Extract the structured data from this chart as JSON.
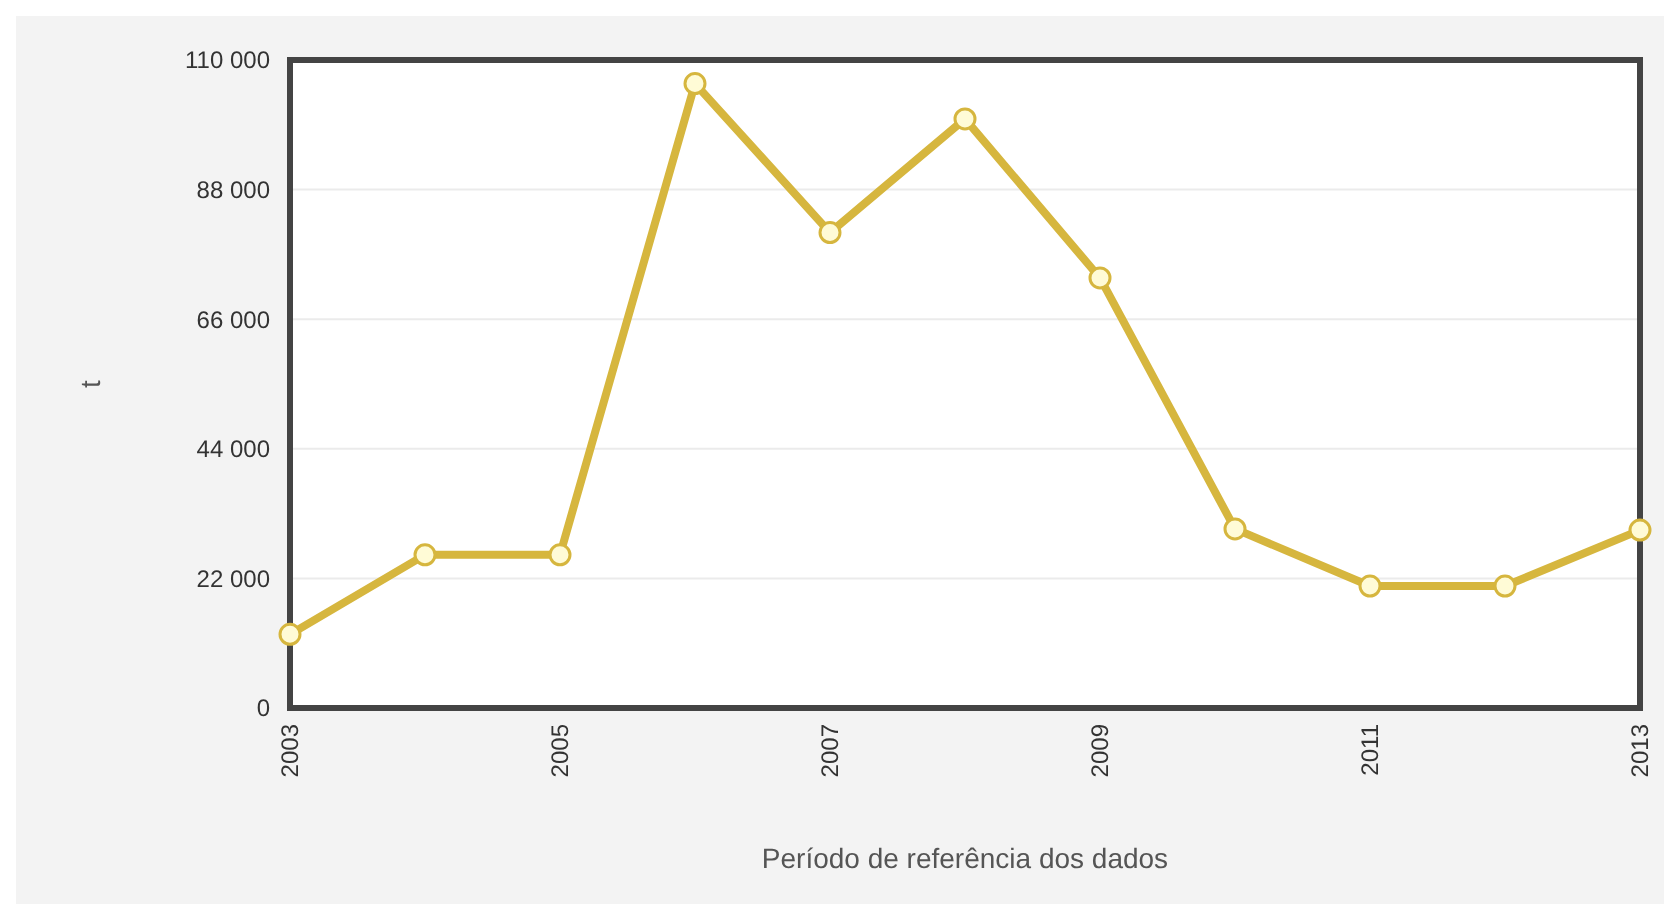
{
  "chart_data": {
    "type": "line",
    "xlabel": "Período de referência dos dados",
    "ylabel": "t",
    "x": [
      2003,
      2004,
      2005,
      2006,
      2007,
      2008,
      2009,
      2010,
      2011,
      2012,
      2013
    ],
    "series": [
      {
        "color": "#d6b63e",
        "values": [
          12500,
          26000,
          26000,
          106000,
          80700,
          100000,
          73000,
          30400,
          20700,
          20700,
          30200
        ]
      }
    ],
    "xlim": [
      2003,
      2013
    ],
    "xticks": [
      {
        "value": 2003,
        "label": "2003"
      },
      {
        "value": 2005,
        "label": "2005"
      },
      {
        "value": 2007,
        "label": "2007"
      },
      {
        "value": 2009,
        "label": "2009"
      },
      {
        "value": 2011,
        "label": "2011"
      },
      {
        "value": 2013,
        "label": "2013"
      }
    ],
    "ylim": [
      0,
      110000
    ],
    "yticks": [
      {
        "value": 0,
        "label": "0"
      },
      {
        "value": 22000,
        "label": "22 000"
      },
      {
        "value": 44000,
        "label": "44 000"
      },
      {
        "value": 66000,
        "label": "66 000"
      },
      {
        "value": 88000,
        "label": "88 000"
      },
      {
        "value": 110000,
        "label": "110 000"
      }
    ],
    "grid": "y",
    "marker": "circle",
    "line_style": "solid"
  }
}
